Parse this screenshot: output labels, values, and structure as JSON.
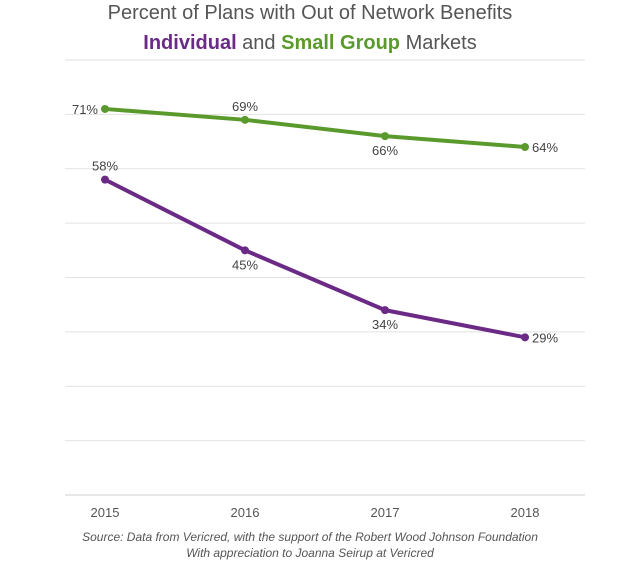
{
  "title": {
    "line1": "Percent of Plans with Out of Network Benefits",
    "individual": "Individual",
    "and": " and ",
    "small_group": "Small Group",
    "markets": " Markets"
  },
  "colors": {
    "individual": "#6b2a86",
    "small_group": "#5a9a2c",
    "grid": "#e2e2e2",
    "text": "#555555"
  },
  "chart_data": {
    "type": "line",
    "title": "Percent of Plans with Out of Network Benefits Individual and Small Group Markets",
    "categories": [
      "2015",
      "2016",
      "2017",
      "2018"
    ],
    "series": [
      {
        "name": "Small Group",
        "values": [
          71,
          69,
          66,
          64
        ],
        "labels": [
          "71%",
          "69%",
          "66%",
          "64%"
        ],
        "color": "#5a9a2c"
      },
      {
        "name": "Individual",
        "values": [
          58,
          45,
          34,
          29
        ],
        "labels": [
          "58%",
          "45%",
          "34%",
          "29%"
        ],
        "color": "#6b2a86"
      }
    ],
    "ylim": [
      0,
      80
    ],
    "grid": true,
    "legend": "in title"
  },
  "source": {
    "line1": "Source: Data from Vericred, with the support of the Robert Wood Johnson Foundation",
    "line2": "With appreciation to Joanna Seirup at Vericred"
  }
}
